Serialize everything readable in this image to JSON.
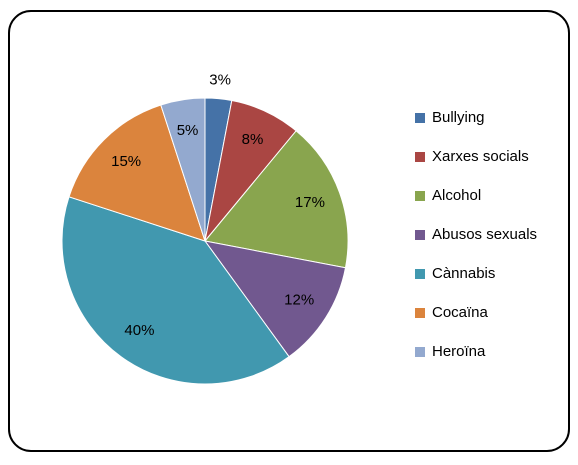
{
  "chart_data": {
    "type": "pie",
    "categories": [
      "Bullying",
      "Xarxes socials",
      "Alcohol",
      "Abusos sexuals",
      "Cànnabis",
      "Cocaïna",
      "Heroïna"
    ],
    "values": [
      3,
      8,
      17,
      12,
      40,
      15,
      5
    ],
    "value_labels": [
      "3%",
      "8%",
      "17%",
      "12%",
      "40%",
      "15%",
      "5%"
    ],
    "colors": [
      "#4572a7",
      "#aa4643",
      "#89a54e",
      "#71588f",
      "#4198af",
      "#db843d",
      "#93a9cf"
    ],
    "legend": "right"
  }
}
